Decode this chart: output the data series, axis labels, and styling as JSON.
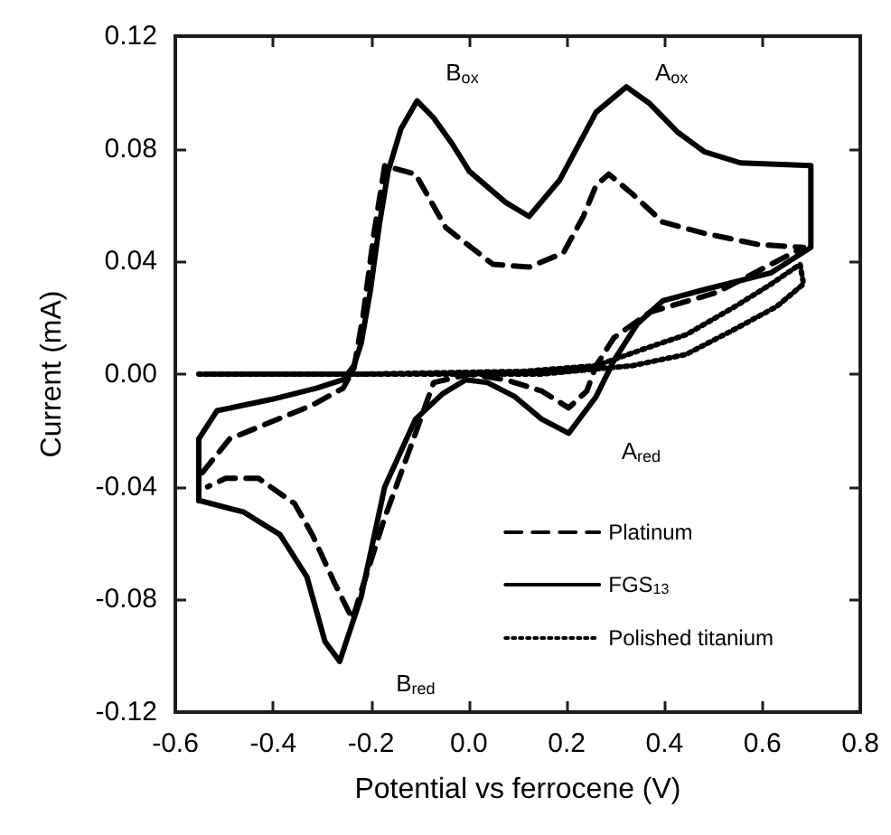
{
  "chart_data": {
    "type": "line",
    "xlabel": "Potential vs ferrocene (V)",
    "ylabel": "Current (mA)",
    "xlim": [
      -0.6,
      0.8
    ],
    "xticks": [
      -0.6,
      -0.4,
      -0.2,
      {
        "value": 0,
        "label": "0.0"
      },
      0.2,
      0.4,
      0.6,
      0.8
    ],
    "ylim": [
      -0.12,
      0.12
    ],
    "yticks": [
      -0.12,
      -0.08,
      -0.04,
      {
        "value": 0,
        "label": "0.00"
      },
      0.04,
      0.08,
      0.12
    ],
    "legend": "bottom right",
    "marker": "none",
    "series": [
      {
        "name": "Platinum",
        "color": "#000000",
        "line_style": "dashed",
        "x": [
          -0.545,
          -0.489,
          -0.32,
          -0.257,
          -0.235,
          -0.216,
          -0.194,
          -0.172,
          -0.109,
          -0.047,
          0.049,
          0.123,
          0.193,
          0.234,
          0.26,
          0.286,
          0.334,
          0.396,
          0.481,
          0.592,
          0.684,
          0.507,
          0.37,
          0.297,
          0.26,
          0.241,
          0.204,
          0.149,
          0.075,
          0.001,
          -0.072,
          -0.109,
          -0.172,
          -0.22,
          -0.238,
          -0.275,
          -0.32,
          -0.356,
          -0.43,
          -0.497,
          -0.534
        ],
        "values": [
          -0.035,
          -0.023,
          -0.011,
          -0.005,
          0.002,
          0.021,
          0.05,
          0.074,
          0.071,
          0.052,
          0.039,
          0.038,
          0.043,
          0.056,
          0.067,
          0.071,
          0.064,
          0.054,
          0.05,
          0.046,
          0.045,
          0.029,
          0.022,
          0.013,
          0.003,
          -0.006,
          -0.012,
          -0.006,
          -0.002,
          0.0,
          -0.003,
          -0.021,
          -0.051,
          -0.077,
          -0.087,
          -0.074,
          -0.057,
          -0.046,
          -0.037,
          -0.037,
          -0.04
        ]
      },
      {
        "name": "FGS$_{13}$",
        "color": "#000000",
        "line_style": "solid",
        "x": [
          -0.552,
          -0.552,
          -0.515,
          -0.404,
          -0.312,
          -0.257,
          -0.235,
          -0.22,
          -0.201,
          -0.183,
          -0.165,
          -0.139,
          -0.106,
          -0.072,
          -0.035,
          0.001,
          0.075,
          0.123,
          0.186,
          0.26,
          0.322,
          0.37,
          0.426,
          0.481,
          0.555,
          0.699,
          0.699,
          0.618,
          0.481,
          0.396,
          0.345,
          0.297,
          0.26,
          0.204,
          0.149,
          0.094,
          0.038,
          -0.006,
          -0.054,
          -0.109,
          -0.172,
          -0.22,
          -0.264,
          -0.294,
          -0.331,
          -0.386,
          -0.46,
          -0.548
        ],
        "values": [
          -0.045,
          -0.023,
          -0.013,
          -0.009,
          -0.005,
          -0.002,
          0.003,
          0.011,
          0.03,
          0.053,
          0.072,
          0.087,
          0.097,
          0.091,
          0.082,
          0.072,
          0.061,
          0.056,
          0.069,
          0.093,
          0.102,
          0.096,
          0.086,
          0.079,
          0.075,
          0.074,
          0.045,
          0.036,
          0.03,
          0.026,
          0.018,
          0.005,
          -0.008,
          -0.021,
          -0.016,
          -0.008,
          -0.003,
          -0.002,
          -0.007,
          -0.016,
          -0.04,
          -0.079,
          -0.102,
          -0.095,
          -0.072,
          -0.057,
          -0.049,
          -0.045
        ]
      },
      {
        "name": "Polished titanium",
        "color": "#000000",
        "line_style": "dotted",
        "x": [
          -0.552,
          -0.22,
          0.149,
          0.334,
          0.444,
          0.544,
          0.629,
          0.684,
          0.677,
          0.618,
          0.544,
          0.444,
          0.359,
          0.26,
          0.112,
          -0.22,
          -0.54
        ],
        "values": [
          0.0,
          0.0,
          0.0,
          0.003,
          0.007,
          0.016,
          0.024,
          0.032,
          0.039,
          0.032,
          0.024,
          0.014,
          0.009,
          0.003,
          0.001,
          0.0,
          0.0
        ]
      }
    ],
    "annotations": [
      {
        "text": "B$_{ox}$",
        "x": -0.106,
        "y": 0.097
      },
      {
        "text": "A$_{ox}$",
        "x": 0.322,
        "y": 0.102
      },
      {
        "text": "A$_{red}$",
        "x": 0.204,
        "y": -0.021
      },
      {
        "text": "B$_{red}$",
        "x": -0.264,
        "y": -0.102
      }
    ]
  }
}
